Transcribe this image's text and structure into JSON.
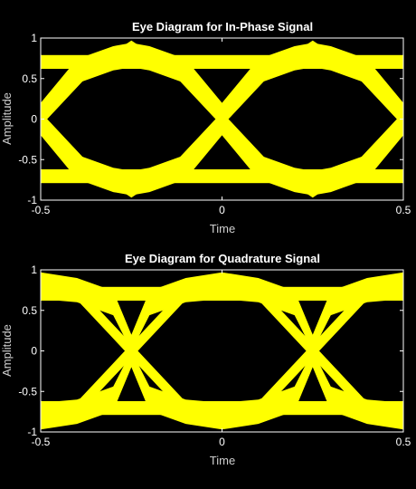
{
  "figure": {
    "background": "#000000"
  },
  "chart_data": [
    {
      "type": "line",
      "title": "Eye Diagram for In-Phase Signal",
      "xlabel": "Time",
      "ylabel": "Amplitude",
      "xlim": [
        -0.5,
        0.5
      ],
      "ylim": [
        -1,
        1
      ],
      "xticks": [
        -0.5,
        0,
        0.5
      ],
      "xtick_labels": [
        "-0.5",
        "0",
        "0.5"
      ],
      "yticks": [
        1,
        0.5,
        0,
        -0.5,
        -1
      ],
      "ytick_labels": [
        "1",
        "0.5",
        "0",
        "-0.5",
        "-1"
      ],
      "grid": false,
      "trace_color": "#ffff00",
      "crossings_x": [
        -0.5,
        0,
        0.5
      ],
      "envelope_x": [
        -0.5,
        -0.4,
        -0.3,
        -0.25,
        -0.2,
        -0.1,
        0,
        0.1,
        0.2,
        0.25,
        0.3,
        0.4,
        0.5
      ],
      "outer_upper": [
        0.2,
        0.74,
        0.9,
        0.94,
        0.9,
        0.74,
        0.2,
        0.74,
        0.9,
        0.94,
        0.9,
        0.74,
        0.2
      ],
      "outer_lower": [
        -0.2,
        -0.74,
        -0.9,
        -0.94,
        -0.9,
        -0.74,
        -0.2,
        -0.74,
        -0.9,
        -0.94,
        -0.9,
        -0.74,
        -0.2
      ],
      "inner_upper": [
        0.0,
        0.44,
        0.6,
        0.64,
        0.6,
        0.44,
        0.0,
        0.44,
        0.6,
        0.64,
        0.6,
        0.44,
        0.0
      ],
      "inner_lower": [
        0.0,
        -0.44,
        -0.6,
        -0.64,
        -0.6,
        -0.44,
        0.0,
        -0.44,
        -0.6,
        -0.64,
        -0.6,
        -0.44,
        0.0
      ],
      "rail_high": [
        0.62,
        0.79
      ],
      "rail_low": [
        -0.79,
        -0.62
      ],
      "extreme_tips_x": [
        -0.25,
        0.25
      ],
      "extreme_tip_value": 0.97
    },
    {
      "type": "line",
      "title": "Eye Diagram for Quadrature Signal",
      "xlabel": "Time",
      "ylabel": "Amplitude",
      "xlim": [
        -0.5,
        0.5
      ],
      "ylim": [
        -1,
        1
      ],
      "xticks": [
        -0.5,
        0,
        0.5
      ],
      "xtick_labels": [
        "-0.5",
        "0",
        "0.5"
      ],
      "yticks": [
        1,
        0.5,
        0,
        -0.5,
        -1
      ],
      "ytick_labels": [
        "1",
        "0.5",
        "0",
        "-0.5",
        "-1"
      ],
      "grid": false,
      "trace_color": "#ffff00",
      "crossings_x": [
        -0.25,
        0.25
      ],
      "envelope_x": [
        -0.5,
        -0.4,
        -0.3,
        -0.25,
        -0.2,
        -0.1,
        0,
        0.1,
        0.2,
        0.25,
        0.3,
        0.4,
        0.5
      ],
      "outer_upper": [
        0.97,
        0.9,
        0.74,
        0.2,
        0.74,
        0.9,
        0.97,
        0.9,
        0.74,
        0.2,
        0.74,
        0.9,
        0.97
      ],
      "outer_lower": [
        -0.97,
        -0.9,
        -0.74,
        -0.2,
        -0.74,
        -0.9,
        -0.97,
        -0.9,
        -0.74,
        -0.2,
        -0.74,
        -0.9,
        -0.97
      ],
      "inner_upper": [
        0.64,
        0.6,
        0.44,
        0.0,
        0.44,
        0.6,
        0.64,
        0.6,
        0.44,
        0.0,
        0.44,
        0.6,
        0.64
      ],
      "inner_lower": [
        -0.64,
        -0.6,
        -0.44,
        0.0,
        -0.44,
        -0.6,
        -0.64,
        -0.6,
        -0.44,
        0.0,
        -0.44,
        -0.6,
        -0.64
      ],
      "rail_high": [
        0.62,
        0.79
      ],
      "rail_low": [
        -0.79,
        -0.62
      ],
      "extreme_tips_x": [
        -0.5,
        0,
        0.5
      ],
      "extreme_tip_value": 0.97
    }
  ]
}
